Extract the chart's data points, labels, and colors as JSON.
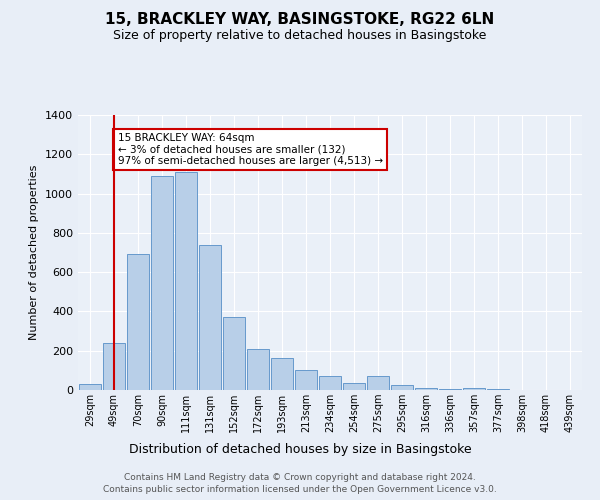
{
  "title": "15, BRACKLEY WAY, BASINGSTOKE, RG22 6LN",
  "subtitle": "Size of property relative to detached houses in Basingstoke",
  "xlabel": "Distribution of detached houses by size in Basingstoke",
  "ylabel": "Number of detached properties",
  "categories": [
    "29sqm",
    "49sqm",
    "70sqm",
    "90sqm",
    "111sqm",
    "131sqm",
    "152sqm",
    "172sqm",
    "193sqm",
    "213sqm",
    "234sqm",
    "254sqm",
    "275sqm",
    "295sqm",
    "316sqm",
    "336sqm",
    "357sqm",
    "377sqm",
    "398sqm",
    "418sqm",
    "439sqm"
  ],
  "values": [
    30,
    240,
    690,
    1090,
    1110,
    740,
    370,
    210,
    165,
    100,
    70,
    35,
    70,
    25,
    8,
    3,
    12,
    3,
    2,
    2,
    2
  ],
  "bar_color": "#b8cfe8",
  "bar_edge_color": "#6699cc",
  "vline_x": 1,
  "vline_color": "#cc0000",
  "annotation_text": "15 BRACKLEY WAY: 64sqm\n← 3% of detached houses are smaller (132)\n97% of semi-detached houses are larger (4,513) →",
  "annotation_box_color": "#ffffff",
  "annotation_box_edge": "#cc0000",
  "ylim": [
    0,
    1400
  ],
  "yticks": [
    0,
    200,
    400,
    600,
    800,
    1000,
    1200,
    1400
  ],
  "bg_color": "#e8eef7",
  "plot_bg_color": "#eaf0f8",
  "grid_color": "#ffffff",
  "footer_line1": "Contains HM Land Registry data © Crown copyright and database right 2024.",
  "footer_line2": "Contains public sector information licensed under the Open Government Licence v3.0."
}
